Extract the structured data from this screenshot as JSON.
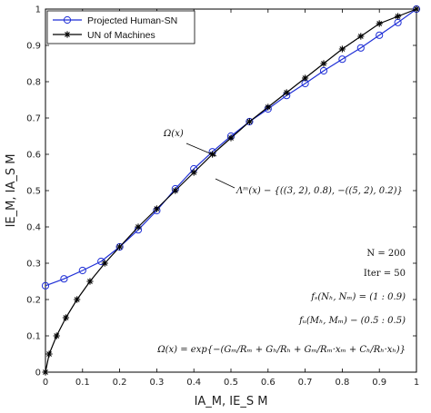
{
  "chart_data": {
    "type": "line",
    "xlabel": "IA_M, IE_S M",
    "ylabel": "IE_M, IA_S M",
    "xlim": [
      0,
      1
    ],
    "ylim": [
      0,
      1
    ],
    "grid": false,
    "legend_position": "top-left",
    "x_ticks": [
      "0",
      "0.1",
      "0.2",
      "0.3",
      "0.4",
      "0.5",
      "0.6",
      "0.7",
      "0.8",
      "0.9",
      "1"
    ],
    "y_ticks": [
      "0",
      "0.1",
      "0.2",
      "0.3",
      "0.4",
      "0.5",
      "0.6",
      "0.7",
      "0.8",
      "0.9",
      "1"
    ],
    "series": [
      {
        "name": "Projected Human-SN",
        "color": "#1f2fd6",
        "marker": "circle",
        "x": [
          0.0,
          0.05,
          0.1,
          0.15,
          0.2,
          0.25,
          0.3,
          0.35,
          0.4,
          0.45,
          0.5,
          0.55,
          0.6,
          0.65,
          0.7,
          0.75,
          0.8,
          0.85,
          0.9,
          0.95,
          1.0
        ],
        "y": [
          0.238,
          0.257,
          0.28,
          0.305,
          0.345,
          0.392,
          0.445,
          0.505,
          0.56,
          0.607,
          0.65,
          0.69,
          0.725,
          0.762,
          0.795,
          0.83,
          0.862,
          0.893,
          0.928,
          0.963,
          1.0
        ]
      },
      {
        "name": "UN of Machines",
        "color": "#000000",
        "marker": "star",
        "x": [
          0.0,
          0.01,
          0.03,
          0.055,
          0.085,
          0.12,
          0.16,
          0.2,
          0.25,
          0.3,
          0.35,
          0.4,
          0.45,
          0.5,
          0.55,
          0.6,
          0.65,
          0.7,
          0.75,
          0.8,
          0.85,
          0.9,
          0.95,
          1.0
        ],
        "y": [
          0.0,
          0.05,
          0.1,
          0.15,
          0.2,
          0.25,
          0.3,
          0.345,
          0.4,
          0.45,
          0.5,
          0.55,
          0.6,
          0.645,
          0.69,
          0.73,
          0.77,
          0.81,
          0.85,
          0.89,
          0.925,
          0.96,
          0.98,
          1.0
        ]
      }
    ],
    "annotations": {
      "omega_label": "Ω(x)",
      "lambda_label": "Λᵐ(x) − {((3, 2), 0.8), −((5, 2), 0.2)}",
      "params": [
        "N = 200",
        "Iter = 50",
        "fₛ(Nₕ, Nₘ) = (1 : 0.9)",
        "fᵤ(Mₕ, Mₘ) − (0.5 : 0.5)",
        "Ω(x) = exp{−(Gₘ/Rₘ + Gₕ/Rₕ + Gₘ/Rₘ·xₘ + Cₕ/Rₕ·xₕ)}"
      ]
    }
  }
}
